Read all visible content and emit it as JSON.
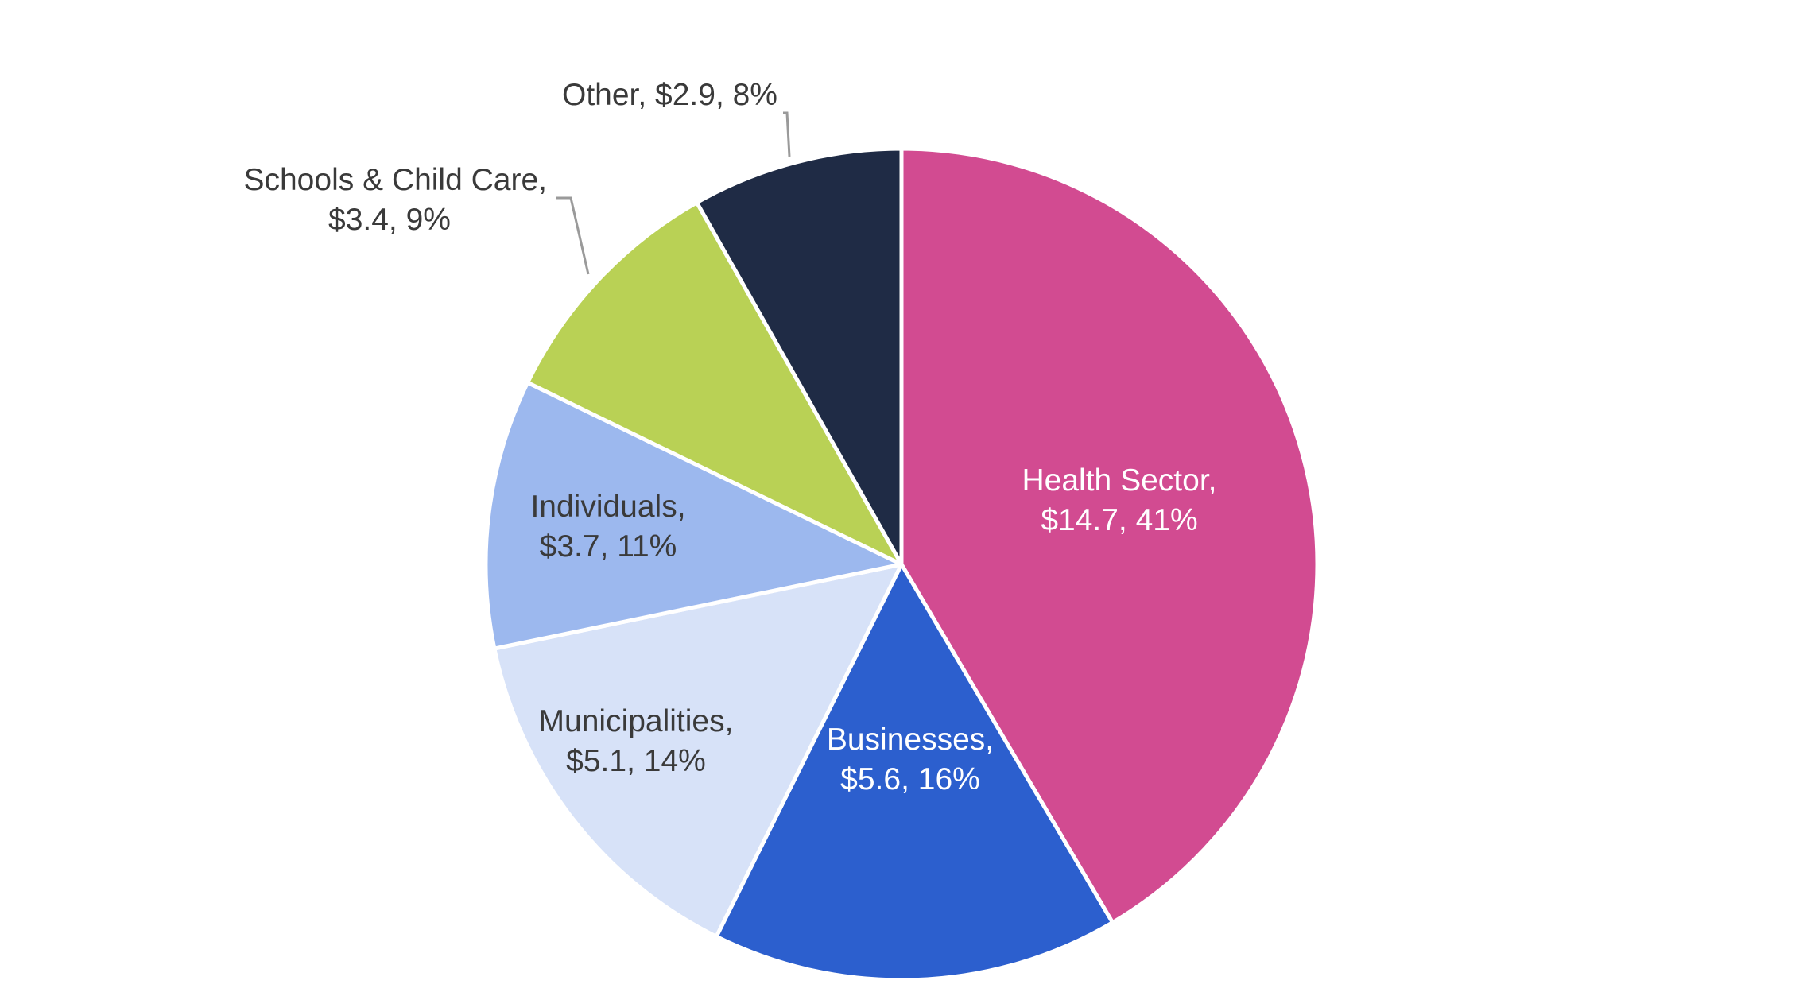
{
  "chart_data": {
    "type": "pie",
    "start_angle_deg": 0,
    "direction": "clockwise",
    "slices": [
      {
        "name": "Health Sector",
        "value": 14.7,
        "percent": 41,
        "color": "#D24B91",
        "label_lines": [
          "Health Sector,",
          "$14.7, 41%"
        ],
        "label_color": "#FFFFFF",
        "label_placement": "inside"
      },
      {
        "name": "Businesses",
        "value": 5.6,
        "percent": 16,
        "color": "#2C5FCE",
        "label_lines": [
          "Businesses,",
          "$5.6, 16%"
        ],
        "label_color": "#FFFFFF",
        "label_placement": "inside"
      },
      {
        "name": "Municipalities",
        "value": 5.1,
        "percent": 14,
        "color": "#D7E2F8",
        "label_lines": [
          "Municipalities,",
          "$5.1, 14%"
        ],
        "label_color": "#3A3A3A",
        "label_placement": "inside"
      },
      {
        "name": "Individuals",
        "value": 3.7,
        "percent": 11,
        "color": "#9CB8EE",
        "label_lines": [
          "Individuals,",
          "$3.7, 11%"
        ],
        "label_color": "#3A3A3A",
        "label_placement": "inside"
      },
      {
        "name": "Schools & Child Care",
        "value": 3.4,
        "percent": 9,
        "color": "#B9D155",
        "label_lines": [
          "Schools & Child Care,",
          "$3.4, 9%"
        ],
        "label_color": "#3A3A3A",
        "label_placement": "outside"
      },
      {
        "name": "Other",
        "value": 2.9,
        "percent": 8,
        "color": "#1F2B45",
        "label_lines": [
          "Other, $2.9, 8%"
        ],
        "label_color": "#3A3A3A",
        "label_placement": "outside"
      }
    ]
  }
}
